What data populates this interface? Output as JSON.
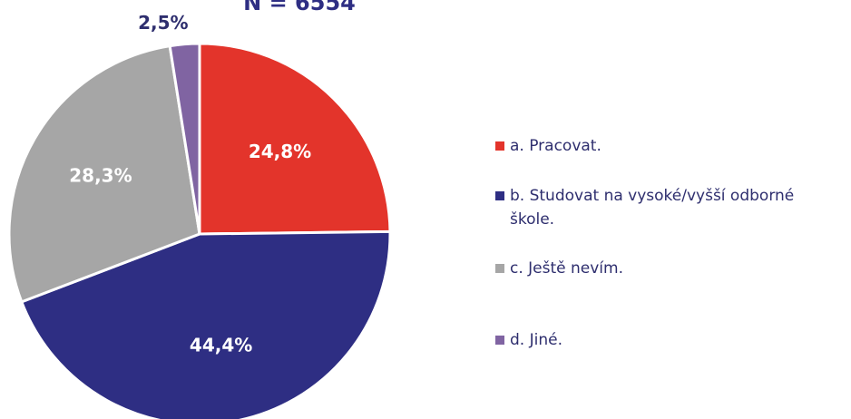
{
  "chart_data": {
    "type": "pie",
    "title": "N = 6554",
    "categories": [
      "a. Pracovat.",
      "b. Studovat na vysoké/vyšší odborné škole.",
      "c. Ještě nevím.",
      "d. Jiné."
    ],
    "values": [
      24.8,
      44.4,
      28.3,
      2.5
    ],
    "value_labels": [
      "24,8%",
      "44,4%",
      "28,3%",
      "2,5%"
    ],
    "colors": [
      "#e3342b",
      "#2e2e83",
      "#a6a6a6",
      "#8064a2"
    ],
    "legend": "right"
  }
}
